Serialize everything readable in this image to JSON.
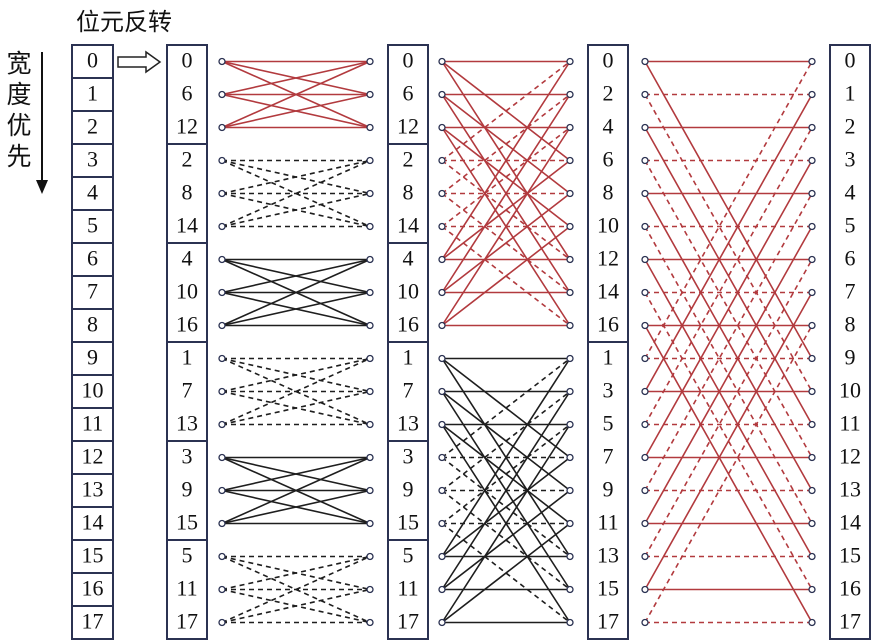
{
  "header": {
    "title": "位元反转",
    "side_label": "宽度优先"
  },
  "columns": {
    "input": [
      0,
      1,
      2,
      3,
      4,
      5,
      6,
      7,
      8,
      9,
      10,
      11,
      12,
      13,
      14,
      15,
      16,
      17
    ],
    "bit_reversed": [
      0,
      6,
      12,
      2,
      8,
      14,
      4,
      10,
      16,
      1,
      7,
      13,
      3,
      9,
      15,
      5,
      11,
      17
    ],
    "stage1": [
      0,
      6,
      12,
      2,
      8,
      14,
      4,
      10,
      16,
      1,
      7,
      13,
      3,
      9,
      15,
      5,
      11,
      17
    ],
    "stage2": [
      0,
      2,
      4,
      6,
      8,
      10,
      12,
      14,
      16,
      1,
      3,
      5,
      7,
      9,
      11,
      13,
      15,
      17
    ],
    "output": [
      0,
      1,
      2,
      3,
      4,
      5,
      6,
      7,
      8,
      9,
      10,
      11,
      12,
      13,
      14,
      15,
      16,
      17
    ]
  }
}
